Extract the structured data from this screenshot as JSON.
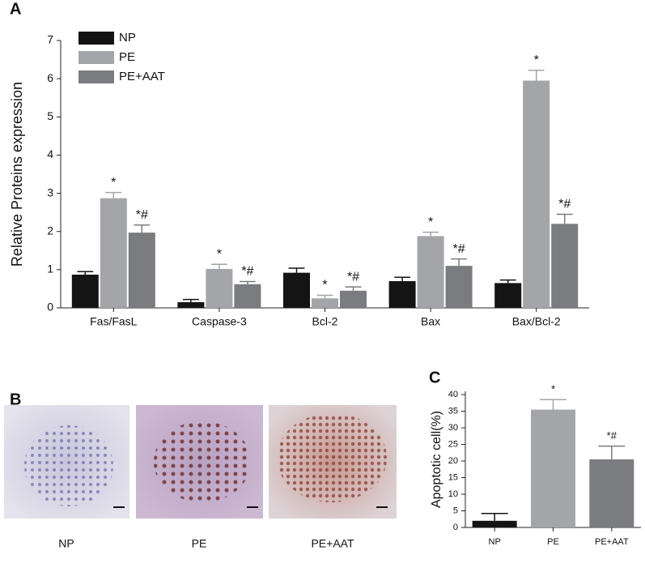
{
  "chart_data": [
    {
      "type": "bar",
      "panel": "A",
      "ylabel": "Relative Proteins expression",
      "categories": [
        "Fas/FasL",
        "Caspase-3",
        "Bcl-2",
        "Bax",
        "Bax/Bcl-2"
      ],
      "series": [
        {
          "name": "NP",
          "color": "#141414",
          "values": [
            0.87,
            0.15,
            0.92,
            0.7,
            0.65
          ],
          "errors": [
            0.08,
            0.07,
            0.12,
            0.1,
            0.08
          ],
          "annotations": [
            null,
            null,
            null,
            null,
            null
          ]
        },
        {
          "name": "PE",
          "color": "#a3a5a8",
          "values": [
            2.87,
            1.02,
            0.25,
            1.88,
            5.95
          ],
          "errors": [
            0.15,
            0.12,
            0.08,
            0.1,
            0.27
          ],
          "annotations": [
            "*",
            "*",
            "*",
            "*",
            "*"
          ]
        },
        {
          "name": "PE+AAT",
          "color": "#7b7c7f",
          "values": [
            1.97,
            0.62,
            0.45,
            1.1,
            2.2
          ],
          "errors": [
            0.2,
            0.07,
            0.1,
            0.18,
            0.25
          ],
          "annotations": [
            "*#",
            "*#",
            "*#",
            "*#",
            "*#"
          ]
        }
      ],
      "ylim": [
        0,
        7
      ],
      "yticks": [
        0,
        1,
        2,
        3,
        4,
        5,
        6,
        7
      ],
      "legend": "top-left"
    },
    {
      "type": "bar",
      "panel": "C",
      "ylabel": "Apoptotic cell(%)",
      "categories": [
        "NP",
        "PE",
        "PE+AAT"
      ],
      "values": [
        2,
        35.5,
        20.5
      ],
      "errors": [
        2.2,
        3,
        4
      ],
      "colors": [
        "#141414",
        "#a3a5a8",
        "#7b7c7f"
      ],
      "annotations": [
        null,
        "*",
        "*#"
      ],
      "ylim": [
        0,
        41
      ],
      "yticks": [
        0,
        5,
        10,
        15,
        20,
        25,
        30,
        35,
        40
      ]
    }
  ],
  "panel_b": {
    "label": "B",
    "captions": [
      "NP",
      "PE",
      "PE+AAT"
    ]
  }
}
